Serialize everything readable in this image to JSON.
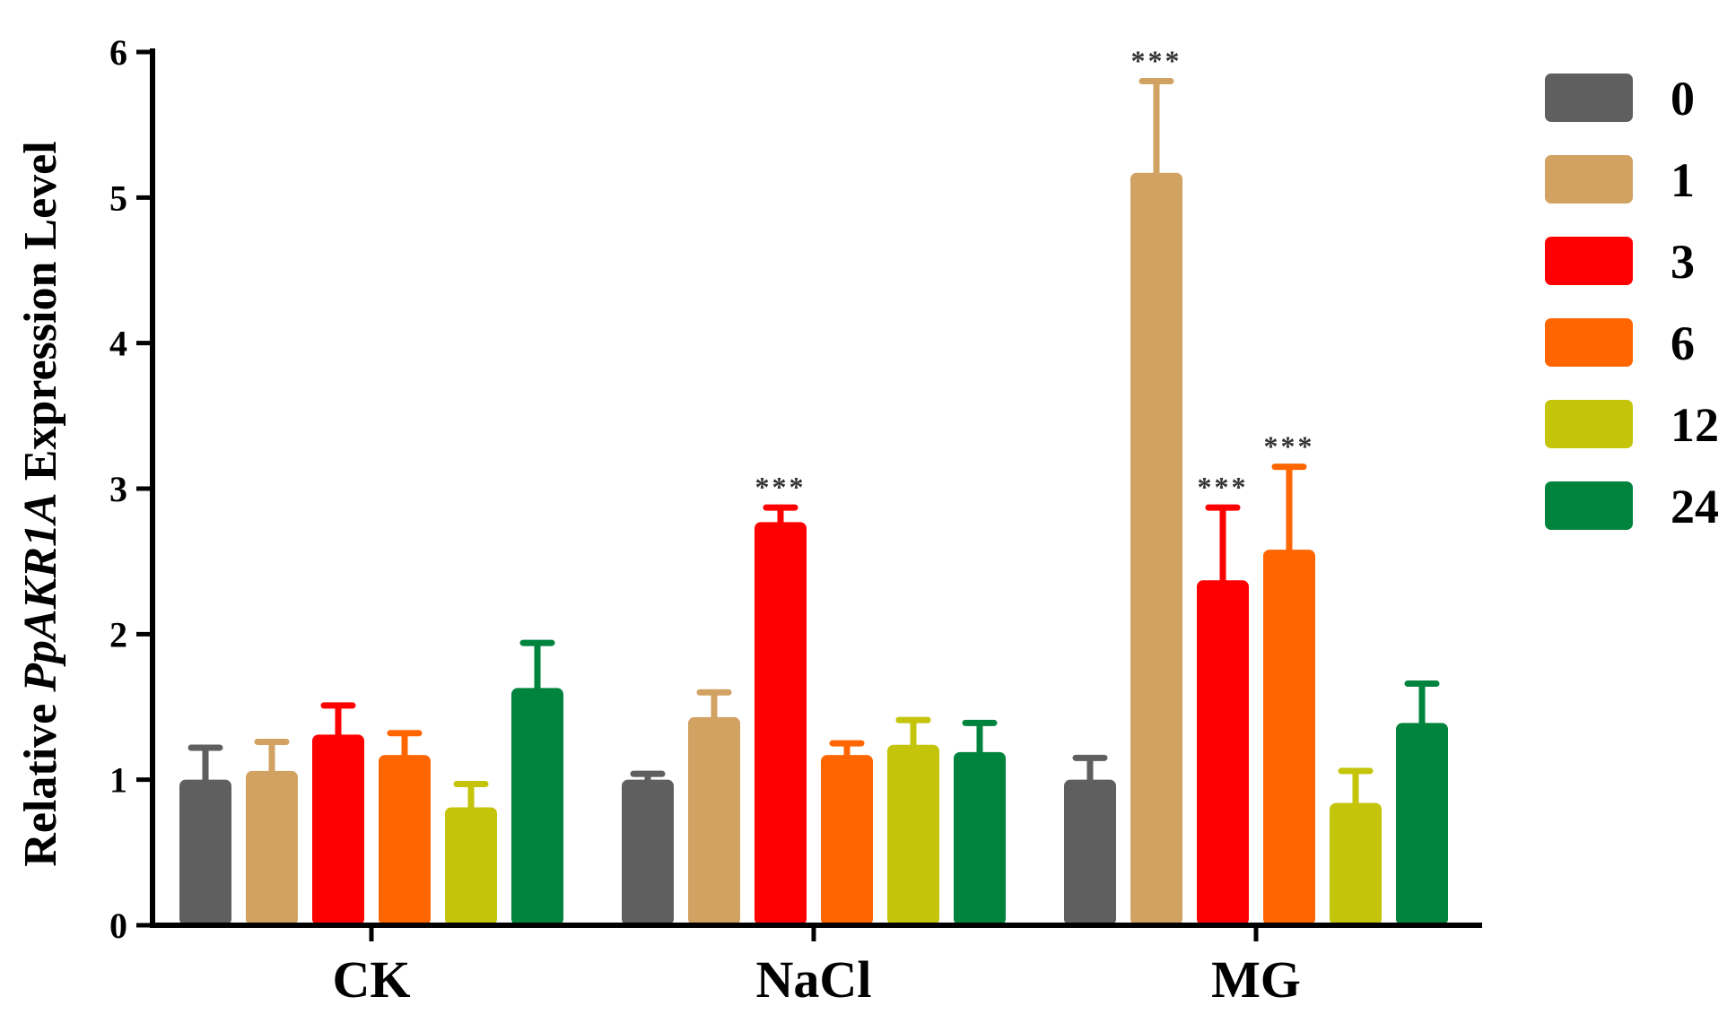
{
  "chart_data": {
    "type": "bar",
    "ylabel_parts": [
      "Relative ",
      "PpAKR1A",
      " Expression Level"
    ],
    "xlabel": "",
    "ylim": [
      0,
      6
    ],
    "yticks": [
      "0",
      "1",
      "2",
      "3",
      "4",
      "5",
      "6"
    ],
    "categories": [
      "CK",
      "NaCl",
      "MG"
    ],
    "legend_position": "right",
    "series": [
      {
        "name": "0",
        "color": "#5f5f5f",
        "values": [
          1.0,
          1.0,
          1.0
        ],
        "errors": [
          0.22,
          0.04,
          0.15
        ]
      },
      {
        "name": "1",
        "color": "#d2a262",
        "values": [
          1.06,
          1.43,
          5.17
        ],
        "errors": [
          0.2,
          0.17,
          0.63
        ]
      },
      {
        "name": "3",
        "color": "#ff0000",
        "values": [
          1.31,
          2.77,
          2.37
        ],
        "errors": [
          0.2,
          0.1,
          0.5
        ]
      },
      {
        "name": "6",
        "color": "#ff6600",
        "values": [
          1.17,
          1.17,
          2.58
        ],
        "errors": [
          0.15,
          0.08,
          0.57
        ]
      },
      {
        "name": "12",
        "color": "#c4c40a",
        "values": [
          0.81,
          1.24,
          0.84
        ],
        "errors": [
          0.16,
          0.17,
          0.22
        ]
      },
      {
        "name": "24",
        "color": "#00843d",
        "values": [
          1.63,
          1.19,
          1.39
        ],
        "errors": [
          0.31,
          0.2,
          0.27
        ]
      }
    ],
    "annotations": [
      {
        "category": "NaCl",
        "series": "3",
        "text": "***"
      },
      {
        "category": "MG",
        "series": "1",
        "text": "***"
      },
      {
        "category": "MG",
        "series": "3",
        "text": "***"
      },
      {
        "category": "MG",
        "series": "6",
        "text": "***"
      }
    ]
  }
}
